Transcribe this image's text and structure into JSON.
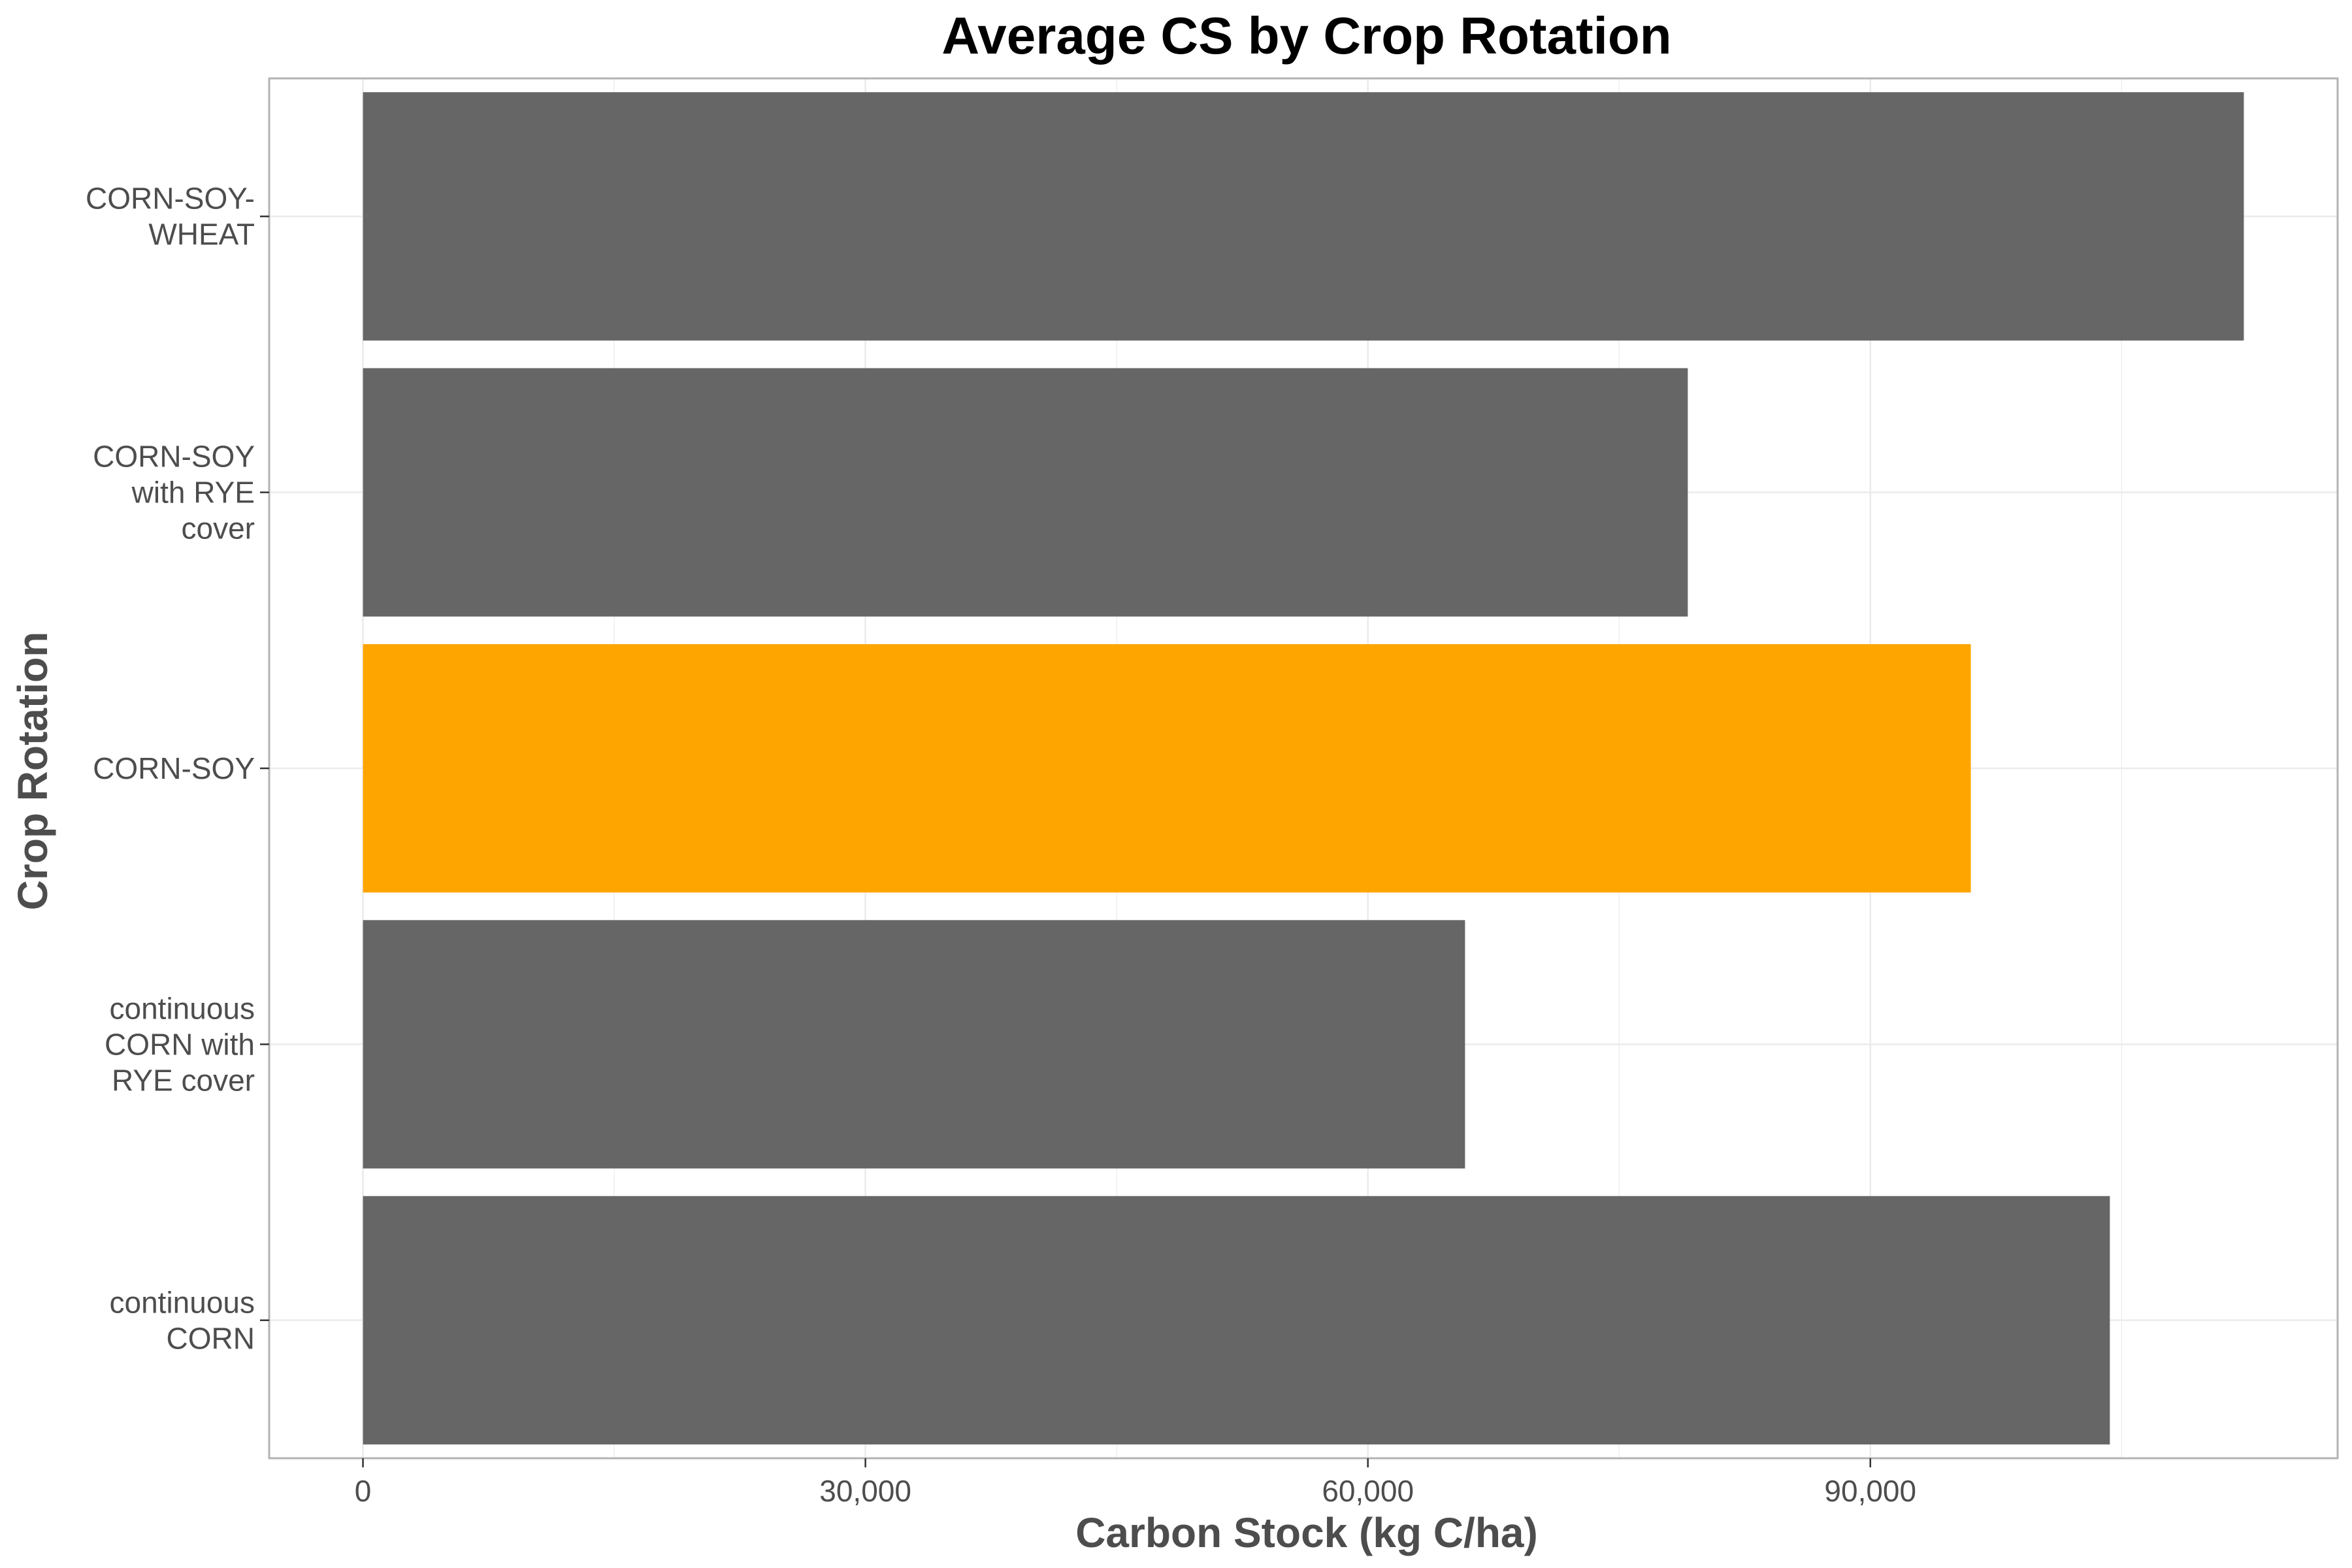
{
  "chart_data": {
    "type": "bar",
    "orientation": "horizontal",
    "title": "Average CS by Crop Rotation",
    "xlabel": "Carbon Stock (kg C/ha)",
    "ylabel": "Crop Rotation",
    "categories": [
      [
        "CORN-SOY-",
        "WHEAT"
      ],
      [
        "CORN-SOY",
        "with RYE",
        "cover"
      ],
      [
        "CORN-SOY"
      ],
      [
        "continuous",
        "CORN with",
        "RYE cover"
      ],
      [
        "continuous",
        "CORN"
      ]
    ],
    "values": [
      112300,
      79100,
      96000,
      65800,
      104300
    ],
    "highlight_index": 2,
    "xlim": [
      -5600,
      117900
    ],
    "x_ticks": [
      0,
      30000,
      60000,
      90000
    ],
    "x_tick_labels": [
      "0",
      "30,000",
      "60,000",
      "90,000"
    ],
    "grid": true,
    "colors": {
      "bar": "#666666",
      "highlight": "#FFA500",
      "grid": "#ebebeb",
      "panel_border": "#b3b3b3"
    }
  }
}
